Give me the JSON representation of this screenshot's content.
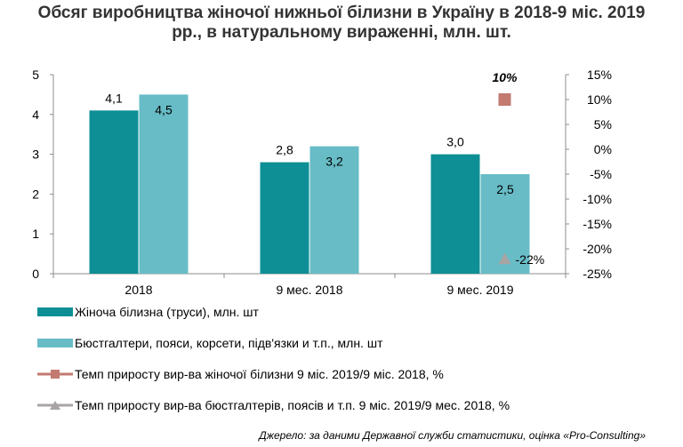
{
  "title_line1": "Обсяг виробництва жіночої нижньої білизни в Україну в 2018-9 міс. 2019",
  "title_line2": "рр., в натуральному вираженні, млн. шт.",
  "source": "Джерело: за даними Державної служби статистики, оцінка «Pro-Consulting»",
  "colors": {
    "series1": "#0e8f95",
    "series2": "#67bcc6",
    "series3": "#c37a70",
    "series4": "#a8a4a4"
  },
  "chart_data": {
    "type": "bar",
    "categories": [
      "2018",
      "9 мес. 2018",
      "9 мес. 2019"
    ],
    "series": [
      {
        "name": "Жіноча білизна (труси), млн. шт",
        "values": [
          4.1,
          2.8,
          3.0
        ],
        "labels": [
          "4,1",
          "2,8",
          "3,0"
        ]
      },
      {
        "name": "Бюстгалтери, пояси, корсети, підв'язки и т.п., млн. шт",
        "values": [
          4.5,
          3.2,
          2.5
        ],
        "labels": [
          "4,5",
          "3,2",
          "2,5"
        ]
      },
      {
        "name": "Темп приросту вир-ва жіночої білизни  9 міс. 2019/9 міс. 2018, %",
        "axis": "right",
        "marker": "square",
        "category": "9 мес. 2019",
        "value": 10,
        "label": "10%"
      },
      {
        "name": "Темп приросту  вир-ва бюстгалтерів,  поясів и т.п. 9 міс. 2019/9 мес. 2018, %",
        "axis": "right",
        "marker": "triangle",
        "category": "9 мес. 2019",
        "value": -22,
        "label": "-22%"
      }
    ],
    "y_left": {
      "range": [
        0,
        5
      ],
      "ticks": [
        "0",
        "1",
        "2",
        "3",
        "4",
        "5"
      ]
    },
    "y_right": {
      "range": [
        -25,
        15
      ],
      "ticks": [
        "-25%",
        "-20%",
        "-15%",
        "-10%",
        "-5%",
        "0%",
        "5%",
        "10%",
        "15%"
      ]
    },
    "grid": false,
    "legend_position": "bottom-left"
  }
}
